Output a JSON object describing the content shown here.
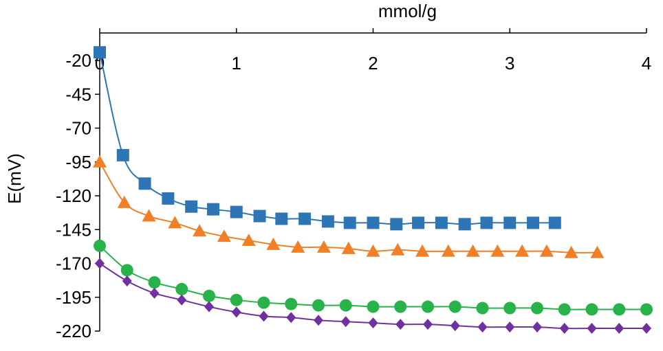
{
  "chart_data": {
    "type": "scatter",
    "title": "",
    "xlabel": "mmol/g",
    "ylabel": "E(mV)",
    "x_axis_position": "top",
    "xlim": [
      0,
      4
    ],
    "ylim": [
      -220,
      -20
    ],
    "y_reversed": true,
    "xticks": [
      0,
      1,
      2,
      3,
      4
    ],
    "yticks": [
      -20,
      -45,
      -70,
      -95,
      -120,
      -145,
      -170,
      -195,
      -220
    ],
    "grid": false,
    "legend": "none",
    "series": [
      {
        "color": "#2E75B6",
        "marker": "square",
        "x": [
          0,
          0.17,
          0.33,
          0.5,
          0.67,
          0.83,
          1.0,
          1.17,
          1.33,
          1.5,
          1.67,
          1.83,
          2.0,
          2.17,
          2.33,
          2.5,
          2.67,
          2.83,
          3.0,
          3.17,
          3.33
        ],
        "y": [
          -14,
          -90,
          -111,
          -122,
          -128,
          -130,
          -132,
          -135,
          -137,
          -137,
          -139,
          -140,
          -140,
          -141,
          -140,
          -140,
          -141,
          -140,
          -140,
          -140,
          -140
        ]
      },
      {
        "color": "#F07F26",
        "marker": "triangle",
        "x": [
          0,
          0.18,
          0.36,
          0.55,
          0.73,
          0.91,
          1.09,
          1.27,
          1.45,
          1.64,
          1.82,
          2.0,
          2.18,
          2.36,
          2.55,
          2.73,
          2.91,
          3.09,
          3.27,
          3.45,
          3.64
        ],
        "y": [
          -95,
          -125,
          -135,
          -140,
          -146,
          -150,
          -153,
          -156,
          -158,
          -158,
          -159,
          -161,
          -160,
          -161,
          -161,
          -161,
          -161,
          -161,
          -161,
          -162,
          -162
        ]
      },
      {
        "color": "#27B24A",
        "marker": "circle",
        "x": [
          0,
          0.2,
          0.4,
          0.6,
          0.8,
          1.0,
          1.2,
          1.4,
          1.6,
          1.8,
          2.0,
          2.2,
          2.4,
          2.6,
          2.8,
          3.0,
          3.2,
          3.4,
          3.6,
          3.8,
          4.0
        ],
        "y": [
          -157,
          -175,
          -184,
          -189,
          -194,
          -197,
          -199,
          -200,
          -201,
          -201,
          -202,
          -202,
          -202,
          -202,
          -203,
          -203,
          -203,
          -204,
          -204,
          -204,
          -204
        ]
      },
      {
        "color": "#7030A0",
        "marker": "diamond",
        "x": [
          0,
          0.2,
          0.4,
          0.6,
          0.8,
          1.0,
          1.2,
          1.4,
          1.6,
          1.8,
          2.0,
          2.2,
          2.4,
          2.6,
          2.8,
          3.0,
          3.2,
          3.4,
          3.6,
          3.8,
          4.0
        ],
        "y": [
          -170,
          -183,
          -192,
          -197,
          -202,
          -206,
          -209,
          -210,
          -212,
          -213,
          -214,
          -215,
          -215,
          -216,
          -217,
          -217,
          -217,
          -218,
          -218,
          -218,
          -218
        ]
      }
    ]
  }
}
